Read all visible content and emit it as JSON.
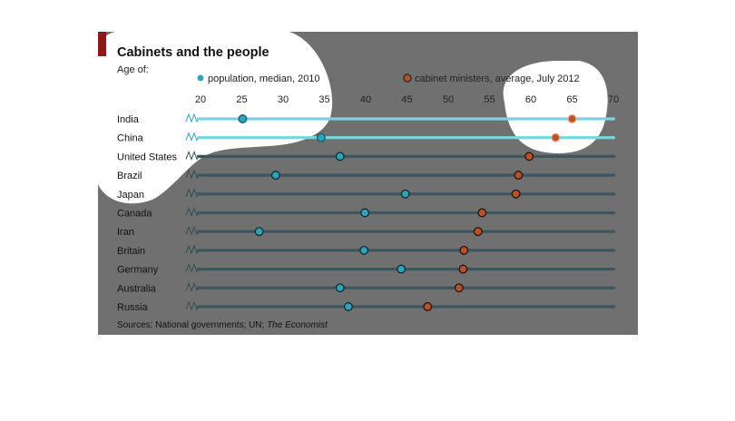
{
  "chart_data": {
    "type": "scatter",
    "title": "Cabinets and the people",
    "subtitle": "Age of:",
    "source_prefix": "Sources: National governments; UN; ",
    "source_publication": "The Economist",
    "xlim": [
      20,
      70
    ],
    "x_ticks": [
      "20",
      "25",
      "30",
      "35",
      "40",
      "45",
      "50",
      "55",
      "60",
      "65",
      "70"
    ],
    "grid": false,
    "legend_position": "top",
    "categories": [
      "India",
      "China",
      "United States",
      "Brazil",
      "Japan",
      "Canada",
      "Iran",
      "Britain",
      "Germany",
      "Australia",
      "Russia"
    ],
    "highlighted_categories": [
      "India",
      "China"
    ],
    "series": [
      {
        "name": "population, median, 2010",
        "values": [
          25.1,
          34.6,
          36.9,
          29.1,
          44.8,
          39.9,
          27.1,
          39.8,
          44.3,
          36.9,
          37.9
        ],
        "color": "#2fa4b8"
      },
      {
        "name": "cabinet ministers, average, July 2012",
        "values": [
          65.0,
          63.0,
          59.8,
          58.5,
          58.2,
          54.1,
          53.6,
          51.9,
          51.8,
          51.3,
          47.5
        ],
        "color": "#b5532e"
      }
    ]
  },
  "colors": {
    "overlay": "#707070",
    "accent_bar": "#8b1a1a",
    "highlight_region": "#ffffff",
    "track_dim": "#3d555c",
    "track_highlight": "#7fd3e0"
  }
}
